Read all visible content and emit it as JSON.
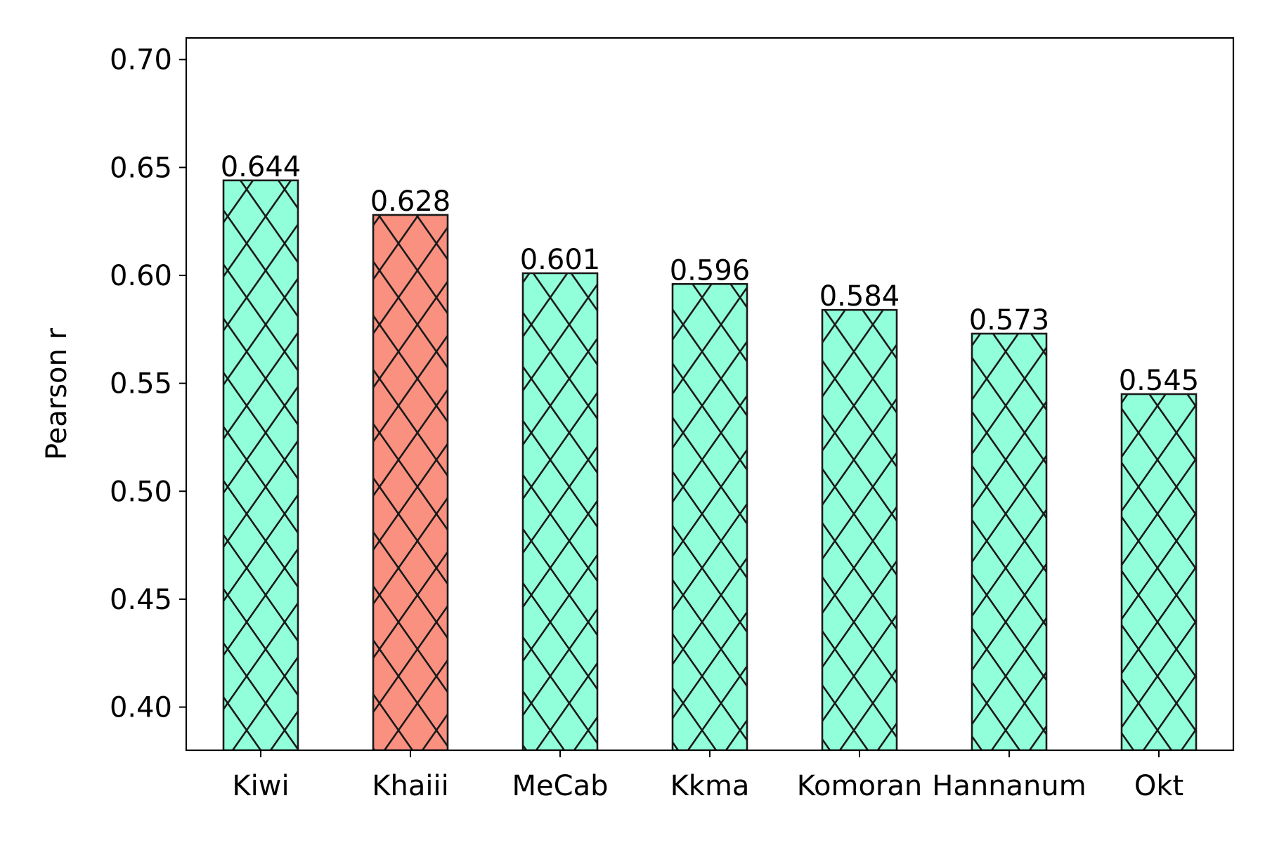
{
  "chart_data": {
    "type": "bar",
    "title": "",
    "xlabel": "",
    "ylabel": "Pearson r",
    "categories": [
      "Kiwi",
      "Khaiii",
      "MeCab",
      "Kkma",
      "Komoran",
      "Hannanum",
      "Okt"
    ],
    "values": [
      0.644,
      0.628,
      0.601,
      0.596,
      0.584,
      0.573,
      0.545
    ],
    "data_labels": [
      "0.644",
      "0.628",
      "0.601",
      "0.596",
      "0.584",
      "0.573",
      "0.545"
    ],
    "bar_colors": [
      "#92ffdb",
      "#f99080",
      "#92ffdb",
      "#92ffdb",
      "#92ffdb",
      "#92ffdb",
      "#92ffdb"
    ],
    "hatch": "diagonal-cross",
    "ylim": [
      0.38,
      0.71
    ],
    "yticks": [
      0.4,
      0.45,
      0.5,
      0.55,
      0.6,
      0.65,
      0.7
    ],
    "ytick_labels": [
      "0.40",
      "0.45",
      "0.50",
      "0.55",
      "0.60",
      "0.65",
      "0.70"
    ],
    "grid": false,
    "legend": "none"
  }
}
